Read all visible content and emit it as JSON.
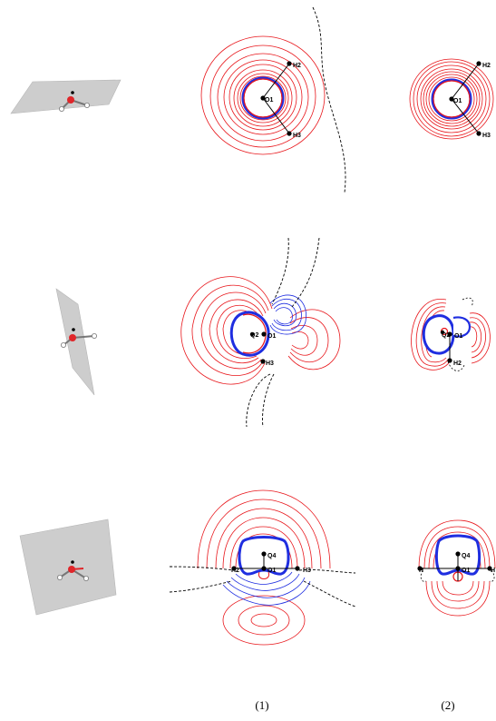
{
  "columns": [
    {
      "caption": "(1)"
    },
    {
      "caption": "(2)"
    }
  ],
  "rows": [
    {
      "id": "row1",
      "col1_labels": [
        "H2",
        "O1",
        "H3"
      ],
      "col2_labels": [
        "H2",
        "O1",
        "H3"
      ]
    },
    {
      "id": "row2",
      "col1_labels": [
        "Q2",
        "O1",
        "H3"
      ],
      "col2_labels": [
        "Q2",
        "O1",
        "H2"
      ]
    },
    {
      "id": "row3",
      "col1_labels": [
        "Q4",
        "H2",
        "O1",
        "H3"
      ],
      "col2_labels": [
        "Q4",
        "H",
        "O1",
        "H"
      ]
    }
  ],
  "colors": {
    "positive_contour": "#e8161b",
    "negative_contour": "#1f2ee0",
    "zero_contour": "#000000",
    "plane": "#cfcfcf",
    "oxygen": "#e0262a"
  }
}
